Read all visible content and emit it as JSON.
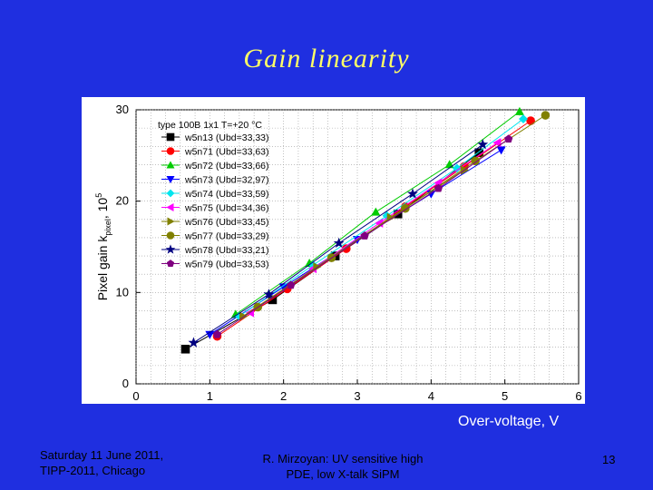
{
  "slide": {
    "title": "Gain linearity",
    "xlabel": "Over-voltage, V",
    "footer_left_line1": "Saturday 11 June 2011,",
    "footer_left_line2": "TIPP-2011, Chicago",
    "footer_center_line1": "R. Mirzoyan: UV sensitive high",
    "footer_center_line2": "PDE, low X-talk SiPM",
    "page_number": "13",
    "background_color": "#1f2fe0",
    "title_color": "#ffff66"
  },
  "chart_data": {
    "type": "line",
    "ylabel_main": "Pixel gain k",
    "ylabel_sub": "pixel",
    "ylabel_tail": ", 10",
    "ylabel_exp": "5",
    "xlim": [
      0,
      6
    ],
    "ylim": [
      0,
      30
    ],
    "x_ticks": [
      "0",
      "1",
      "2",
      "3",
      "4",
      "5",
      "6"
    ],
    "y_ticks": [
      "0",
      "10",
      "20",
      "30"
    ],
    "grid": true,
    "legend_position": "top-left",
    "legend_title": "type 100B 1x1 T=+20 °C",
    "series": [
      {
        "name": "w5n13 (Ubd=33,33)",
        "color": "#000000",
        "marker": "square",
        "x": [
          0.67,
          1.85,
          2.7,
          3.55,
          4.65
        ],
        "y": [
          3.8,
          9.2,
          14.0,
          18.6,
          25.3
        ]
      },
      {
        "name": "w5n71 (Ubd=33,63)",
        "color": "#ff0000",
        "marker": "circle",
        "x": [
          1.1,
          2.05,
          2.85,
          3.65,
          4.45,
          5.35
        ],
        "y": [
          5.2,
          10.4,
          14.8,
          19.4,
          23.8,
          28.8
        ]
      },
      {
        "name": "w5n72 (Ubd=33,66)",
        "color": "#00cc00",
        "marker": "triangle-up",
        "x": [
          1.35,
          2.35,
          3.25,
          4.25,
          5.2
        ],
        "y": [
          7.6,
          13.2,
          18.8,
          24.0,
          29.8
        ]
      },
      {
        "name": "w5n73 (Ubd=32,97)",
        "color": "#0000ff",
        "marker": "triangle-down",
        "x": [
          1.0,
          2.0,
          3.0,
          4.0,
          4.95
        ],
        "y": [
          5.4,
          10.6,
          15.8,
          20.8,
          25.6
        ]
      },
      {
        "name": "w5n74 (Ubd=33,59)",
        "color": "#00e5ee",
        "marker": "diamond",
        "x": [
          1.4,
          2.4,
          3.4,
          4.35,
          5.25
        ],
        "y": [
          7.4,
          13.0,
          18.4,
          23.6,
          29.0
        ]
      },
      {
        "name": "w5n75 (Ubd=34,36)",
        "color": "#ff00ff",
        "marker": "triangle-left",
        "x": [
          1.55,
          2.4,
          3.3,
          4.1,
          4.9
        ],
        "y": [
          7.8,
          12.6,
          17.6,
          22.0,
          26.4
        ]
      },
      {
        "name": "w5n76 (Ubd=33,45)",
        "color": "#808000",
        "marker": "triangle-right",
        "x": [
          1.45,
          2.45,
          3.45,
          4.45
        ],
        "y": [
          7.4,
          12.8,
          18.2,
          23.4
        ]
      },
      {
        "name": "w5n77 (Ubd=33,29)",
        "color": "#808000",
        "marker": "circle",
        "x": [
          1.65,
          2.65,
          3.65,
          4.6,
          5.55
        ],
        "y": [
          8.4,
          13.8,
          19.2,
          24.4,
          29.4
        ]
      },
      {
        "name": "w5n78 (Ubd=33,21)",
        "color": "#000080",
        "marker": "star",
        "x": [
          0.78,
          1.8,
          2.75,
          3.75,
          4.7
        ],
        "y": [
          4.5,
          9.8,
          15.4,
          20.8,
          26.2
        ]
      },
      {
        "name": "w5n79 (Ubd=33,53)",
        "color": "#800080",
        "marker": "pentagon",
        "x": [
          1.1,
          2.1,
          3.1,
          4.1,
          5.05
        ],
        "y": [
          5.4,
          10.8,
          16.2,
          21.4,
          26.8
        ]
      }
    ]
  }
}
